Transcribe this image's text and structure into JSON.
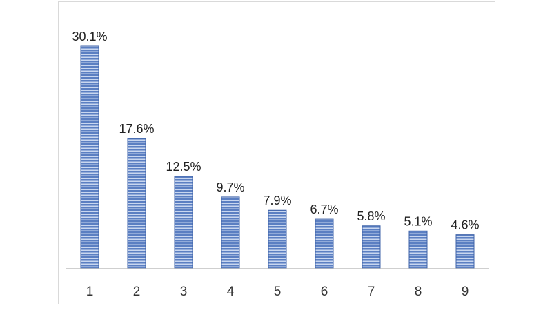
{
  "chart_data": {
    "type": "bar",
    "categories": [
      "1",
      "2",
      "3",
      "4",
      "5",
      "6",
      "7",
      "8",
      "9"
    ],
    "values": [
      30.1,
      17.6,
      12.5,
      9.7,
      7.9,
      6.7,
      5.8,
      5.1,
      4.6
    ],
    "data_labels": [
      "30.1%",
      "17.6%",
      "12.5%",
      "9.7%",
      "7.9%",
      "6.7%",
      "5.8%",
      "5.1%",
      "4.6%"
    ],
    "title": "",
    "xlabel": "",
    "ylabel": "",
    "ylim": [
      0,
      30.1
    ],
    "grid": false,
    "legend": "none",
    "colors": {
      "bar_fill": "#5b7fc2",
      "bar_stripe": "#c9d7f0",
      "bar_edge": "#3f63a8",
      "axis": "#bfbfbf"
    }
  }
}
